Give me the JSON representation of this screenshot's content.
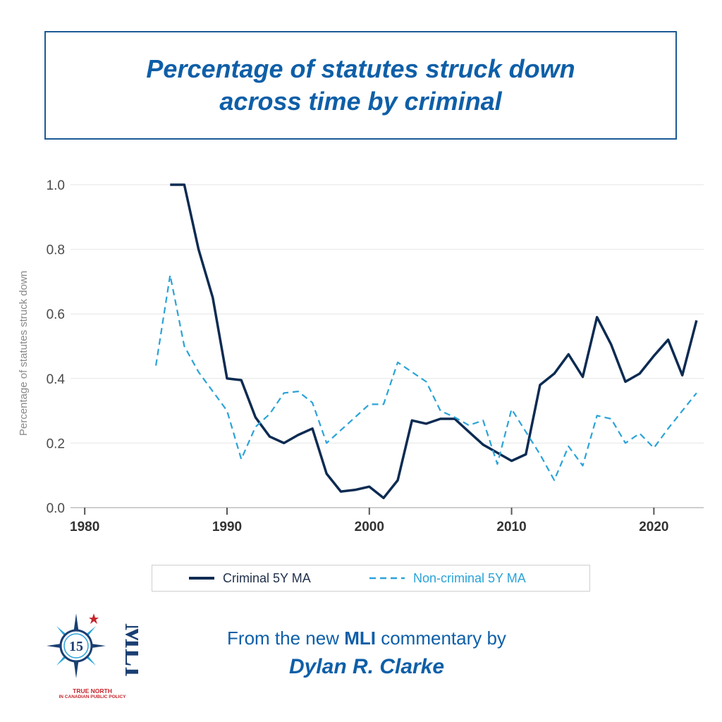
{
  "title": {
    "line1": "Percentage of statutes struck down",
    "line2": "across time by criminal"
  },
  "legend": {
    "criminal_label": "Criminal 5Y MA",
    "noncriminal_label": "Non-criminal 5Y MA"
  },
  "footer": {
    "prefix": "From the new ",
    "brand": "MLI",
    "suffix": " commentary by",
    "author": "Dylan R. Clarke"
  },
  "logo": {
    "number": "15",
    "letters": "MLI",
    "tagline1": "TRUE NORTH",
    "tagline2": "IN CANADIAN PUBLIC POLICY"
  },
  "colors": {
    "criminal": "#0d2b52",
    "noncriminal": "#2aa3d8",
    "title": "#0e5fa8",
    "accent_red": "#c6242b"
  },
  "chart_data": {
    "type": "line",
    "title": "Percentage of statutes struck down across time by criminal",
    "xlabel": "",
    "ylabel": "Percentage of statutes struck down",
    "xlim": [
      1979,
      2023.5
    ],
    "ylim": [
      0,
      1.0
    ],
    "x_ticks": [
      1980,
      1990,
      2000,
      2010,
      2020
    ],
    "y_ticks": [
      0.0,
      0.2,
      0.4,
      0.6,
      0.8,
      1.0
    ],
    "y_tick_labels": [
      "0.0",
      "0.2",
      "0.4",
      "0.6",
      "0.8",
      "1.0"
    ],
    "grid": "horizontal",
    "series": [
      {
        "name": "Criminal 5Y MA",
        "style": "solid",
        "x": [
          1986,
          1987,
          1988,
          1989,
          1990,
          1991,
          1992,
          1993,
          1994,
          1995,
          1996,
          1997,
          1998,
          1999,
          2000,
          2001,
          2002,
          2003,
          2004,
          2005,
          2006,
          2007,
          2008,
          2009,
          2010,
          2011,
          2012,
          2013,
          2014,
          2015,
          2016,
          2017,
          2018,
          2019,
          2020,
          2021,
          2022,
          2023
        ],
        "values": [
          1.0,
          1.0,
          0.8,
          0.65,
          0.4,
          0.395,
          0.28,
          0.22,
          0.2,
          0.225,
          0.245,
          0.105,
          0.05,
          0.055,
          0.065,
          0.03,
          0.085,
          0.27,
          0.26,
          0.275,
          0.275,
          0.235,
          0.195,
          0.17,
          0.145,
          0.165,
          0.38,
          0.415,
          0.475,
          0.405,
          0.59,
          0.505,
          0.39,
          0.415,
          0.47,
          0.52,
          0.41,
          0.58
        ]
      },
      {
        "name": "Non-criminal 5Y MA",
        "style": "dashed",
        "x": [
          1985,
          1986,
          1987,
          1988,
          1989,
          1990,
          1991,
          1992,
          1993,
          1994,
          1995,
          1996,
          1997,
          1998,
          1999,
          2000,
          2001,
          2002,
          2003,
          2004,
          2005,
          2006,
          2007,
          2008,
          2009,
          2010,
          2011,
          2012,
          2013,
          2014,
          2015,
          2016,
          2017,
          2018,
          2019,
          2020,
          2021,
          2022,
          2023
        ],
        "values": [
          0.44,
          0.72,
          0.5,
          0.42,
          0.36,
          0.3,
          0.15,
          0.25,
          0.29,
          0.355,
          0.36,
          0.325,
          0.2,
          0.24,
          0.28,
          0.32,
          0.32,
          0.45,
          0.42,
          0.39,
          0.3,
          0.28,
          0.255,
          0.27,
          0.135,
          0.305,
          0.235,
          0.165,
          0.085,
          0.19,
          0.13,
          0.285,
          0.275,
          0.2,
          0.23,
          0.185,
          0.245,
          0.3,
          0.355
        ]
      }
    ]
  }
}
